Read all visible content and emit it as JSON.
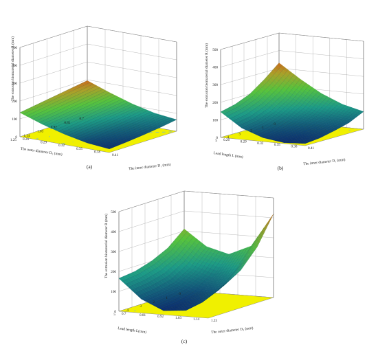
{
  "colors": {
    "floor": "#f0f000",
    "low": "#0b2d70",
    "mid": "#1c9a86",
    "high": "#56c23c",
    "top": "#c86a1c"
  },
  "chart_data": [
    {
      "type": "surface",
      "panel_label": "(a)",
      "zlabel": "The extrusion biomaterial diameter R (mm)",
      "xlabel": "The outer diameter D₂ (mm)",
      "ylabel": "The inner diameter D₁ (mm)",
      "x_ticks": [
        "0.7",
        "0.81",
        "0.92",
        "1.03",
        "1.14",
        "1.25"
      ],
      "y_ticks": [
        "0.41",
        "0.38",
        "0.35",
        "0.32",
        "0.29",
        "0.26"
      ],
      "z_ticks": [
        "0",
        "100",
        "200",
        "300",
        "400",
        "500"
      ],
      "zlim": [
        0,
        500
      ],
      "surface_z": [
        [
          195,
          150,
          110,
          80,
          65
        ],
        [
          180,
          135,
          95,
          65,
          50
        ],
        [
          165,
          120,
          82,
          52,
          38
        ],
        [
          150,
          105,
          70,
          42,
          28
        ],
        [
          135,
          92,
          58,
          32,
          20
        ]
      ]
    },
    {
      "type": "surface",
      "panel_label": "(b)",
      "zlabel": "The extrusion biomaterial diameter R (mm)",
      "xlabel": "Lead length L (mm)",
      "ylabel": "The inner diameter D₁ (mm)",
      "x_ticks": [
        "0",
        "1",
        "2",
        "3",
        "4",
        "5"
      ],
      "y_ticks": [
        "0.41",
        "0.38",
        "0.35",
        "0.32",
        "0.29",
        "0.26"
      ],
      "z_ticks": [
        "0",
        "100",
        "200",
        "300",
        "400",
        "500"
      ],
      "zlim": [
        0,
        500
      ],
      "surface_z": [
        [
          330,
          250,
          180,
          130,
          100
        ],
        [
          260,
          170,
          110,
          75,
          60
        ],
        [
          200,
          115,
          65,
          42,
          38
        ],
        [
          165,
          80,
          35,
          18,
          20
        ],
        [
          145,
          65,
          22,
          5,
          12
        ]
      ]
    },
    {
      "type": "surface",
      "panel_label": "(c)",
      "zlabel": "The extrusion biomaterial diameter R (mm)",
      "xlabel": "Lead length L(mm)",
      "ylabel": "The outer diameter D₂ (mm)",
      "x_ticks": [
        "0",
        "1",
        "2",
        "3",
        "4",
        "5"
      ],
      "y_ticks": [
        "1.25",
        "1.14",
        "1.03",
        "0.92",
        "0.81",
        "0.7"
      ],
      "z_ticks": [
        "0",
        "100",
        "200",
        "300",
        "400",
        "500"
      ],
      "zlim": [
        0,
        500
      ],
      "surface_z": [
        [
          310,
          230,
          200,
          250,
          420
        ],
        [
          240,
          150,
          110,
          150,
          280
        ],
        [
          200,
          100,
          55,
          80,
          190
        ],
        [
          175,
          80,
          30,
          45,
          140
        ],
        [
          165,
          70,
          20,
          30,
          110
        ]
      ]
    }
  ]
}
